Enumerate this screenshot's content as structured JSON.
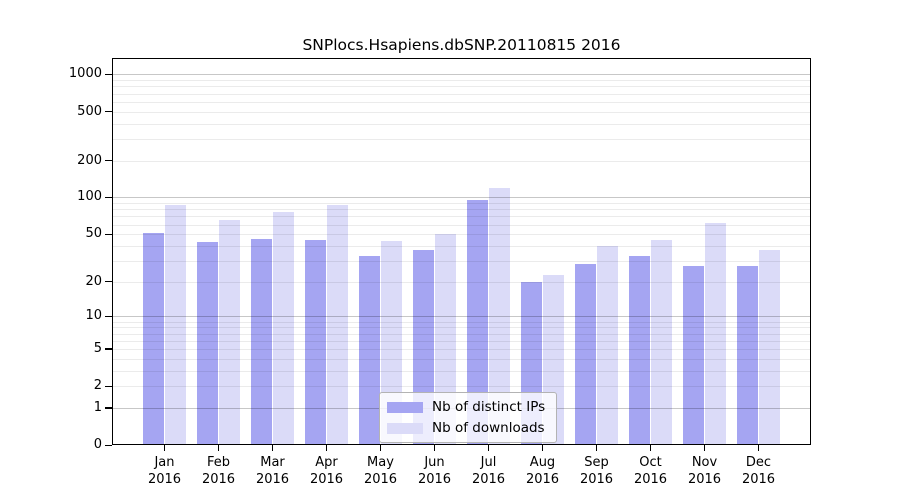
{
  "chart_data": {
    "type": "bar",
    "title": "SNPlocs.Hsapiens.dbSNP.20110815 2016",
    "categories": [
      "Jan",
      "Feb",
      "Mar",
      "Apr",
      "May",
      "Jun",
      "Jul",
      "Aug",
      "Sep",
      "Oct",
      "Nov",
      "Dec"
    ],
    "xtick_year": "2016",
    "series": [
      {
        "name": "Nb of distinct IPs",
        "color": "#a5a5f2",
        "values": [
          51,
          43,
          46,
          45,
          33,
          37,
          95,
          20,
          28,
          33,
          27,
          27
        ]
      },
      {
        "name": "Nb of downloads",
        "color": "#dbdbf8",
        "values": [
          86,
          65,
          76,
          86,
          44,
          50,
          119,
          23,
          40,
          45,
          62,
          37
        ]
      }
    ],
    "yticks": [
      1000,
      500,
      200,
      100,
      50,
      20,
      10,
      5,
      2,
      1,
      0
    ],
    "scale": "log1p",
    "ylim": [
      0,
      1358
    ],
    "grid": true,
    "legend_position": "bottom-center",
    "axis_color": "#000000"
  }
}
